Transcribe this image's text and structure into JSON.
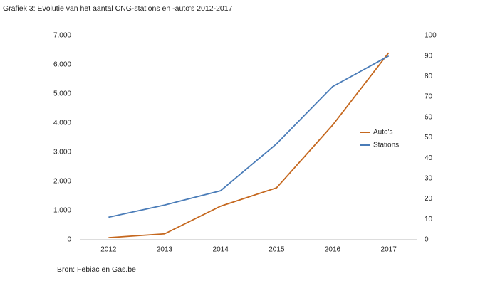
{
  "chart_data": {
    "type": "line",
    "title": "Grafiek 3: Evolutie van het aantal CNG-stations en -auto's 2012-2017",
    "source": "Bron: Febiac en Gas.be",
    "categories": [
      "2012",
      "2013",
      "2014",
      "2015",
      "2016",
      "2017"
    ],
    "series": [
      {
        "name": "Auto's",
        "color": "#c5681f",
        "values": [
          70,
          200,
          1150,
          1780,
          3930,
          6410
        ]
      },
      {
        "name": "Stations",
        "color": "#4a7cb8",
        "axis": "y2",
        "values": [
          11,
          17,
          24,
          47,
          75,
          90
        ]
      }
    ],
    "ylim": [
      0,
      7000
    ],
    "yticks": [
      0,
      {
        "value": 1000,
        "label": "1.000"
      },
      {
        "value": 2000,
        "label": "2.000"
      },
      {
        "value": 3000,
        "label": "3.000"
      },
      {
        "value": 4000,
        "label": "4.000"
      },
      {
        "value": 5000,
        "label": "5.000"
      },
      {
        "value": 6000,
        "label": "6.000"
      },
      {
        "value": 7000,
        "label": "7.000"
      }
    ],
    "y2lim": [
      0,
      100
    ],
    "y2ticks": [
      0,
      10,
      20,
      30,
      40,
      50,
      60,
      70,
      80,
      90,
      100
    ],
    "grid": false,
    "legend": "right"
  }
}
